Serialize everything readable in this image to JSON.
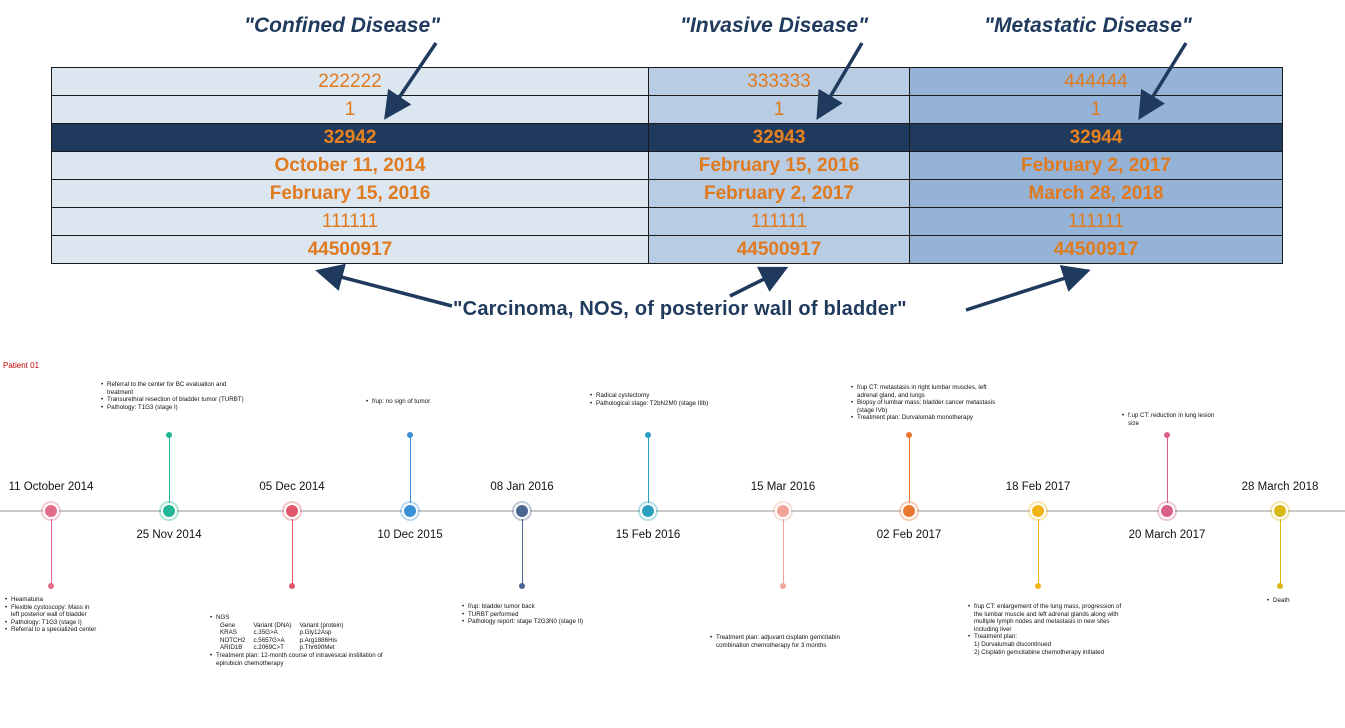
{
  "callouts": {
    "confined": "\"Confined Disease\"",
    "invasive": "\"Invasive Disease\"",
    "metastatic": "\"Metastatic Disease\""
  },
  "stage_table": {
    "rows": [
      [
        "222222",
        "333333",
        "444444"
      ],
      [
        "1",
        "1",
        "1"
      ],
      [
        "32942",
        "32943",
        "32944"
      ],
      [
        "October 11, 2014",
        "February 15, 2016",
        "February 2, 2017"
      ],
      [
        "February 15, 2016",
        "February 2, 2017",
        "March 28, 2018"
      ],
      [
        "111111",
        "111111",
        "111111"
      ],
      [
        "44500917",
        "44500917",
        "44500917"
      ]
    ]
  },
  "bottom_label": "\"Carcinoma, NOS, of posterior wall of bladder\"",
  "colors": {
    "navy": "#1f3a5c",
    "orange": "#e07a1f"
  },
  "timeline": {
    "patient_label": "Patient 01",
    "events": [
      {
        "date": "11 October 2014",
        "color": "#e36c8a"
      },
      {
        "date": "25 Nov 2014",
        "color": "#23b596"
      },
      {
        "date": "05 Dec 2014",
        "color": "#e0566a"
      },
      {
        "date": "10 Dec 2015",
        "color": "#3a8fd6"
      },
      {
        "date": "08 Jan 2016",
        "color": "#4a6690"
      },
      {
        "date": "15 Feb 2016",
        "color": "#2a9fc0"
      },
      {
        "date": "15 Mar 2016",
        "color": "#f4a39a"
      },
      {
        "date": "02 Feb 2017",
        "color": "#e8792f"
      },
      {
        "date": "18 Feb 2017",
        "color": "#f2b418"
      },
      {
        "date": "20 March 2017",
        "color": "#d9608a"
      },
      {
        "date": "28 March 2018",
        "color": "#d9b81a"
      }
    ],
    "notes": {
      "e0": [
        "Heamaturia",
        "Flexible cystoscopy: Mass in left posterior wall of bladder",
        "Pathology: T1G3 (stage I)",
        "Referral to a specialized center"
      ],
      "e1": [
        "Referral to the center for BC evaluation and treatment",
        "Transurethral resection of bladder tumor (TURBT)",
        "Pathology: T1G3 (stage I)"
      ],
      "e2_title": "NGS",
      "e2_headers": [
        "Gene",
        "Variant (DNA)",
        "Variant (protein)"
      ],
      "e2_rows": [
        [
          "KRAS",
          "c.35G>A",
          "p.Gly12Asp"
        ],
        [
          "NOTCH2",
          "c.5657G>A",
          "p.Arg1886His"
        ],
        [
          "ARID1B",
          "c.2069C>T",
          "p.Thr690Met"
        ]
      ],
      "e2_extra": "Treatment plan: 12-month course of intravesical instillation of epirubicin chemotherapy",
      "e3": [
        "f/up: no sign of tumor"
      ],
      "e4": [
        "f/up: bladder tumor back",
        "TURBT performed",
        "Pathology report: stage T2G3N0 (stage II)"
      ],
      "e5": [
        "Radical cystectomy",
        "Pathological stage: T2bN2M0 (stage IIIb)"
      ],
      "e6": [
        "Treatment plan: adjuvant cisplatin gemcitabin combination chemotherapy for 3 months"
      ],
      "e7": [
        "f/up CT: metastasis in right lumbar muscles, left adrenal gland, and lungs",
        "Biopsy of lumbar mass: bladder cancer metastasis (stage IVb)",
        "Treatment plan: Durvalumab monotherapy"
      ],
      "e8": [
        "f/up CT: enlargement of the lung mass, progression of the lumbar muscle and left adrenal glands along with multiple lymph nodes and metastasis in new sites including liver",
        "Treatment plan:"
      ],
      "e8_sub": [
        "1) Durvalumab discontinued",
        "2) Cisplatin gemcitabine chemotherapy initiated"
      ],
      "e9": [
        "f.up CT: reduction in lung lesion size"
      ],
      "e10": [
        "Death"
      ]
    }
  }
}
